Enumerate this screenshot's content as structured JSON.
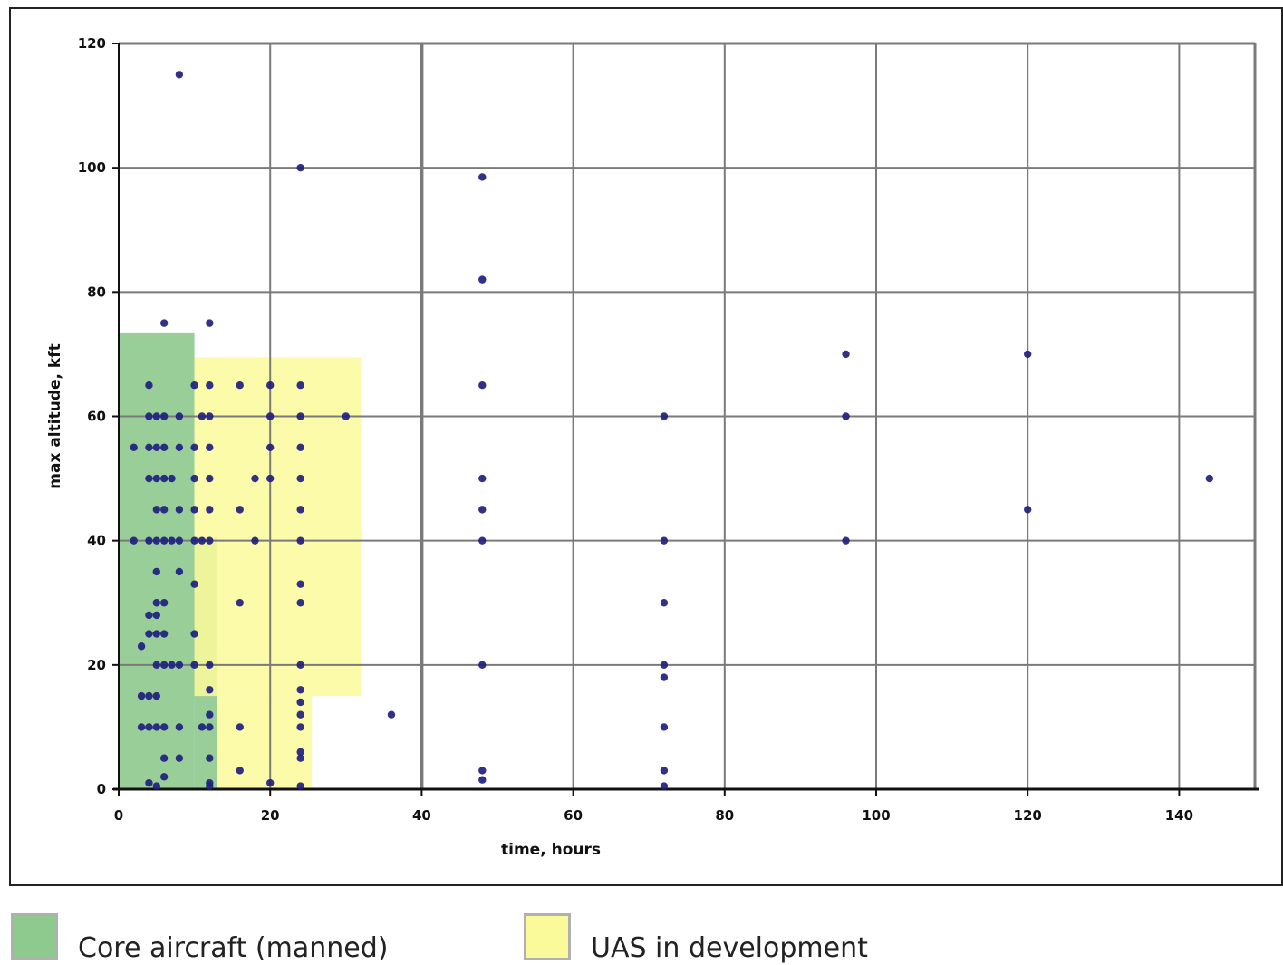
{
  "colors": {
    "core": "#8ec98e",
    "uas": "#fbfa9a",
    "point": "#1f1f80",
    "grid": "#7a7a7a"
  },
  "legend": {
    "core_label": "Core aircraft (manned)",
    "uas_label": "UAS in development"
  },
  "chart_data": {
    "type": "scatter",
    "title": "",
    "xlabel": "time, hours",
    "ylabel": "max altitude, kft",
    "xlim": [
      0,
      150
    ],
    "ylim": [
      0,
      120
    ],
    "xticks": [
      0,
      20,
      40,
      60,
      80,
      100,
      120,
      140
    ],
    "yticks": [
      0,
      20,
      40,
      60,
      80,
      100,
      120
    ],
    "grid": true,
    "legend_position": "bottom",
    "regions": [
      {
        "name": "Core aircraft (manned)",
        "color": "#8ec98e",
        "x": [
          0,
          10
        ],
        "y": [
          0,
          73.5
        ]
      },
      {
        "name": "Core aircraft (manned)",
        "color": "#8ec98e",
        "x": [
          10,
          13
        ],
        "y": [
          0,
          40.5
        ]
      },
      {
        "name": "UAS in development",
        "color": "#fbfa9a",
        "x": [
          10,
          32
        ],
        "y": [
          15,
          69.5
        ]
      },
      {
        "name": "UAS in development",
        "color": "#fbfa9a",
        "x": [
          13,
          25.5
        ],
        "y": [
          0,
          15
        ]
      }
    ],
    "points": [
      [
        8,
        115
      ],
      [
        24,
        100
      ],
      [
        48,
        98.5
      ],
      [
        48,
        82
      ],
      [
        6,
        75
      ],
      [
        12,
        75
      ],
      [
        96,
        70
      ],
      [
        120,
        70
      ],
      [
        48,
        65
      ],
      [
        96,
        60
      ],
      [
        72,
        60
      ],
      [
        144,
        50
      ],
      [
        48,
        50
      ],
      [
        48,
        45
      ],
      [
        120,
        45
      ],
      [
        48,
        40
      ],
      [
        96,
        40
      ],
      [
        72,
        40
      ],
      [
        72,
        30
      ],
      [
        48,
        20
      ],
      [
        72,
        20
      ],
      [
        72,
        18
      ],
      [
        72,
        10
      ],
      [
        36,
        12
      ],
      [
        48,
        3
      ],
      [
        48,
        1.5
      ],
      [
        72,
        3
      ],
      [
        72,
        0.5
      ],
      [
        4,
        65
      ],
      [
        4,
        60
      ],
      [
        5,
        60
      ],
      [
        6,
        60
      ],
      [
        8,
        60
      ],
      [
        10,
        65
      ],
      [
        12,
        65
      ],
      [
        11,
        60
      ],
      [
        12,
        60
      ],
      [
        16,
        65
      ],
      [
        20,
        65
      ],
      [
        24,
        65
      ],
      [
        20,
        60
      ],
      [
        24,
        60
      ],
      [
        30,
        60
      ],
      [
        2,
        55
      ],
      [
        4,
        55
      ],
      [
        5,
        55
      ],
      [
        6,
        55
      ],
      [
        8,
        55
      ],
      [
        10,
        55
      ],
      [
        12,
        55
      ],
      [
        20,
        55
      ],
      [
        24,
        55
      ],
      [
        4,
        50
      ],
      [
        5,
        50
      ],
      [
        6,
        50
      ],
      [
        7,
        50
      ],
      [
        10,
        50
      ],
      [
        12,
        50
      ],
      [
        18,
        50
      ],
      [
        20,
        50
      ],
      [
        24,
        50
      ],
      [
        5,
        45
      ],
      [
        6,
        45
      ],
      [
        8,
        45
      ],
      [
        10,
        45
      ],
      [
        12,
        45
      ],
      [
        16,
        45
      ],
      [
        24,
        45
      ],
      [
        2,
        40
      ],
      [
        4,
        40
      ],
      [
        5,
        40
      ],
      [
        6,
        40
      ],
      [
        7,
        40
      ],
      [
        8,
        40
      ],
      [
        10,
        40
      ],
      [
        11,
        40
      ],
      [
        12,
        40
      ],
      [
        18,
        40
      ],
      [
        24,
        40
      ],
      [
        5,
        35
      ],
      [
        8,
        35
      ],
      [
        10,
        33
      ],
      [
        24,
        33
      ],
      [
        5,
        30
      ],
      [
        6,
        30
      ],
      [
        16,
        30
      ],
      [
        24,
        30
      ],
      [
        4,
        28
      ],
      [
        5,
        28
      ],
      [
        4,
        25
      ],
      [
        5,
        25
      ],
      [
        6,
        25
      ],
      [
        10,
        25
      ],
      [
        3,
        23
      ],
      [
        5,
        20
      ],
      [
        6,
        20
      ],
      [
        7,
        20
      ],
      [
        8,
        20
      ],
      [
        10,
        20
      ],
      [
        12,
        20
      ],
      [
        24,
        20
      ],
      [
        24,
        16
      ],
      [
        12,
        16
      ],
      [
        24,
        14
      ],
      [
        3,
        15
      ],
      [
        4,
        15
      ],
      [
        5,
        15
      ],
      [
        24,
        12
      ],
      [
        12,
        12
      ],
      [
        3,
        10
      ],
      [
        4,
        10
      ],
      [
        5,
        10
      ],
      [
        6,
        10
      ],
      [
        8,
        10
      ],
      [
        11,
        10
      ],
      [
        12,
        10
      ],
      [
        16,
        10
      ],
      [
        24,
        10
      ],
      [
        24,
        6
      ],
      [
        24,
        5
      ],
      [
        6,
        5
      ],
      [
        8,
        5
      ],
      [
        12,
        5
      ],
      [
        16,
        3
      ],
      [
        20,
        1
      ],
      [
        4,
        1
      ],
      [
        5,
        0.5
      ],
      [
        6,
        2
      ],
      [
        12,
        1
      ],
      [
        12,
        0.5
      ],
      [
        24,
        0.5
      ]
    ]
  }
}
